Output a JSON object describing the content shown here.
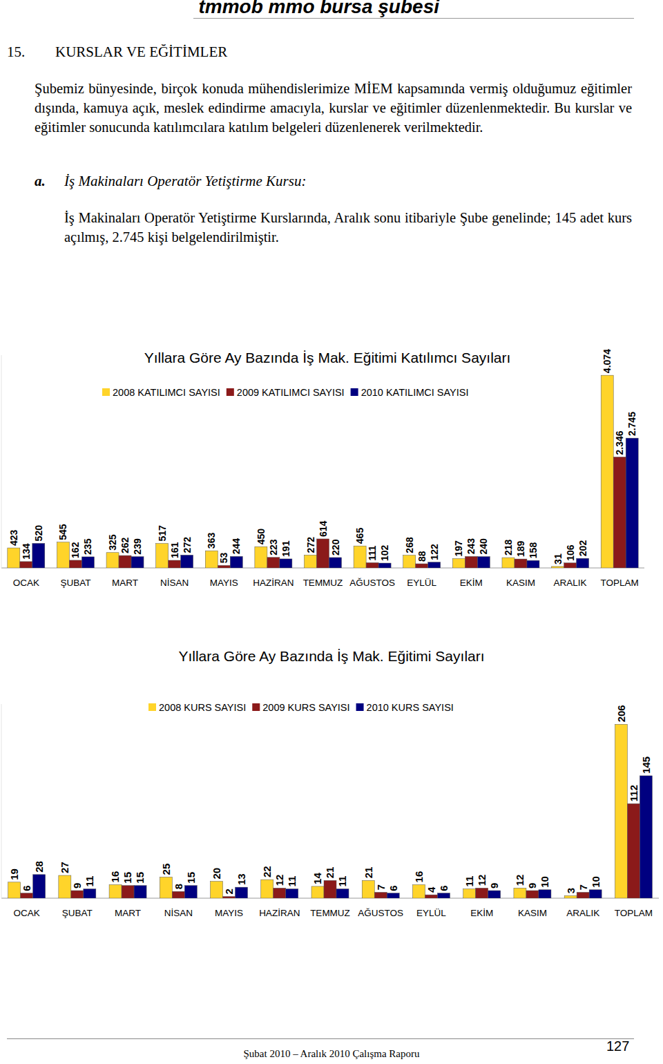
{
  "header": {
    "text": "tmmob mmo bursa şubesi"
  },
  "section": {
    "number": "15.",
    "title": "KURSLAR VE EĞİTİMLER",
    "paragraph": "Şubemiz bünyesinde, birçok konuda mühendislerimize MİEM kapsamında vermiş olduğumuz eğitimler dışında, kamuya açık, meslek edindirme amacıyla, kurslar ve eğitimler düzenlenmektedir. Bu kurslar ve eğitimler sonucunda katılımcılara katılım belgeleri düzenlenerek verilmektedir."
  },
  "subsection": {
    "letter": "a.",
    "title": "İş Makinaları Operatör Yetiştirme Kursu:",
    "paragraph": "İş Makinaları Operatör Yetiştirme Kurslarında, Aralık sonu itibariyle Şube genelinde; 145 adet kurs açılmış, 2.745 kişi belgelendirilmiştir."
  },
  "chart_data": [
    {
      "type": "bar",
      "title": "Yıllara Göre Ay Bazında İş Mak. Eğitimi Katılımcı Sayıları",
      "categories": [
        "OCAK",
        "ŞUBAT",
        "MART",
        "NİSAN",
        "MAYIS",
        "HAZİRAN",
        "TEMMUZ",
        "AĞUSTOS",
        "EYLÜL",
        "EKİM",
        "KASIM",
        "ARALIK",
        "TOPLAM"
      ],
      "series": [
        {
          "name": "2008 KATILIMCI SAYISI",
          "color": "#ffd42a",
          "values": [
            423,
            545,
            325,
            517,
            363,
            450,
            272,
            465,
            268,
            197,
            218,
            31,
            4074
          ],
          "value_labels": [
            "423",
            "545",
            "325",
            "517",
            "363",
            "450",
            "272",
            "465",
            "268",
            "197",
            "218",
            "31",
            "4.074"
          ]
        },
        {
          "name": "2009 KATILIMCI SAYISI",
          "color": "#8b1a1a",
          "values": [
            134,
            162,
            262,
            161,
            53,
            223,
            614,
            111,
            88,
            243,
            189,
            106,
            2346
          ],
          "value_labels": [
            "134",
            "162",
            "262",
            "161",
            "53",
            "223",
            "614",
            "111",
            "88",
            "243",
            "189",
            "106",
            "2.346"
          ]
        },
        {
          "name": "2010 KATILIMCI SAYISI",
          "color": "#000080",
          "values": [
            520,
            235,
            239,
            272,
            244,
            191,
            220,
            102,
            122,
            240,
            158,
            202,
            2745
          ],
          "value_labels": [
            "520",
            "235",
            "239",
            "272",
            "244",
            "191",
            "220",
            "102",
            "122",
            "240",
            "158",
            "202",
            "2.745"
          ]
        }
      ],
      "ylim": [
        0,
        4500
      ],
      "data_labels": true,
      "tick_labels": "x",
      "legend": "top",
      "grid": false
    },
    {
      "type": "bar",
      "title": "Yıllara Göre Ay Bazında İş Mak. Eğitimi Sayıları",
      "categories": [
        "OCAK",
        "ŞUBAT",
        "MART",
        "NİSAN",
        "MAYIS",
        "HAZİRAN",
        "TEMMUZ",
        "AĞUSTOS",
        "EYLÜL",
        "EKİM",
        "KASIM",
        "ARALIK",
        "TOPLAM"
      ],
      "series": [
        {
          "name": "2008 KURS SAYISI",
          "color": "#ffd42a",
          "values": [
            19,
            27,
            16,
            25,
            20,
            22,
            14,
            21,
            16,
            11,
            12,
            3,
            206
          ]
        },
        {
          "name": "2009 KURS SAYISI",
          "color": "#8b1a1a",
          "values": [
            6,
            9,
            15,
            8,
            2,
            12,
            21,
            7,
            4,
            12,
            9,
            7,
            112
          ]
        },
        {
          "name": "2010 KURS SAYISI",
          "color": "#000080",
          "values": [
            28,
            11,
            15,
            15,
            13,
            11,
            11,
            6,
            6,
            9,
            10,
            10,
            145
          ]
        }
      ],
      "ylim": [
        0,
        230
      ],
      "data_labels": true,
      "tick_labels": "x",
      "legend": "top",
      "grid": false
    }
  ],
  "footer": {
    "text": "Şubat 2010 – Aralık 2010 Çalışma Raporu",
    "page": "127"
  }
}
